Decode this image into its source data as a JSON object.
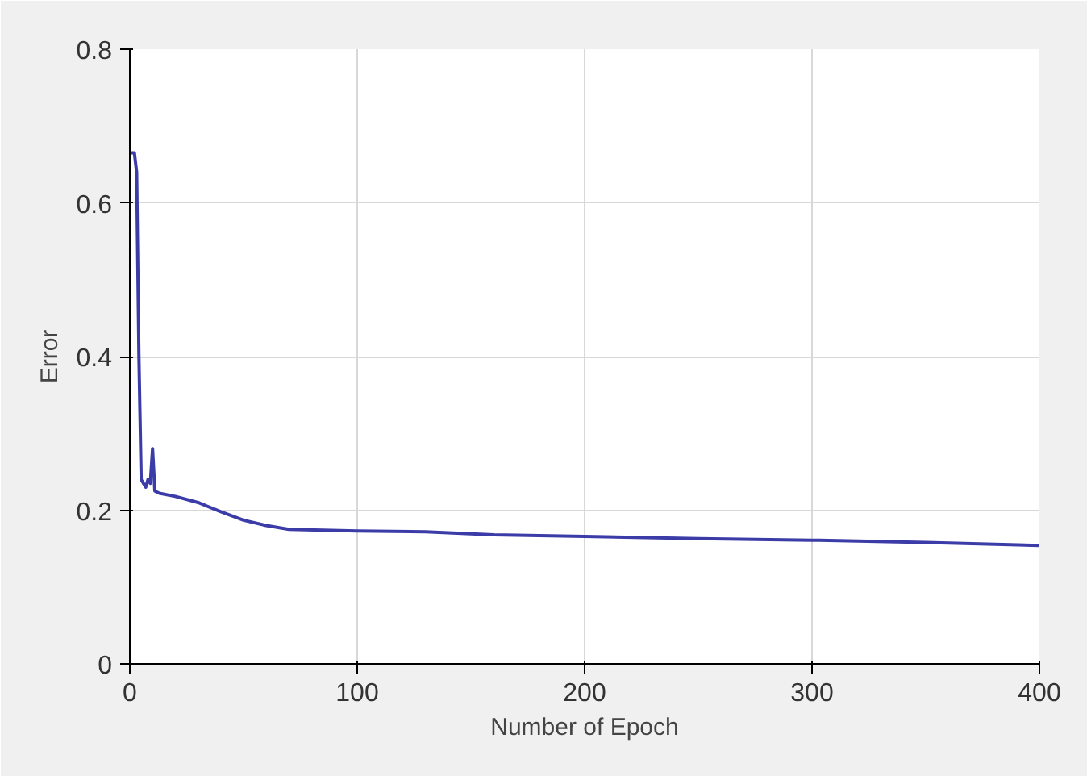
{
  "chart_data": {
    "type": "line",
    "xlabel": "Number of Epoch",
    "ylabel": "Error",
    "xlim": [
      0,
      400
    ],
    "ylim": [
      0,
      0.8
    ],
    "xticks": [
      0,
      100,
      200,
      300,
      400
    ],
    "yticks": [
      0,
      0.2,
      0.4,
      0.6,
      0.8
    ],
    "grid": true,
    "series": [
      {
        "color": "#3c3ca8",
        "x": [
          0,
          2,
          3,
          4,
          5,
          7,
          8,
          9,
          10,
          11,
          13,
          20,
          30,
          40,
          50,
          60,
          70,
          100,
          130,
          160,
          200,
          250,
          300,
          350,
          400
        ],
        "values": [
          0.665,
          0.665,
          0.64,
          0.4,
          0.24,
          0.23,
          0.24,
          0.235,
          0.28,
          0.225,
          0.222,
          0.218,
          0.21,
          0.198,
          0.187,
          0.18,
          0.175,
          0.173,
          0.172,
          0.168,
          0.166,
          0.163,
          0.161,
          0.158,
          0.154
        ]
      }
    ]
  }
}
